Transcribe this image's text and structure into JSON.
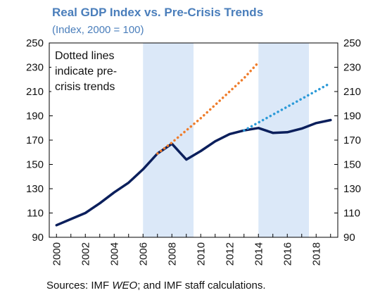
{
  "title": "Real GDP Index vs. Pre-Crisis Trends",
  "subtitle": "(Index, 2000 = 100)",
  "source": {
    "prefix": "Sources: IMF ",
    "italic": "WEO",
    "suffix": "; and IMF staff calculations."
  },
  "chart_data": {
    "type": "line",
    "x": [
      2000,
      2001,
      2002,
      2003,
      2004,
      2005,
      2006,
      2007,
      2008,
      2009,
      2010,
      2011,
      2012,
      2013,
      2014,
      2015,
      2016,
      2017,
      2018,
      2019
    ],
    "xlim": [
      1999.5,
      2019.5
    ],
    "ylim": [
      90,
      250
    ],
    "yticks": [
      90,
      110,
      130,
      150,
      170,
      190,
      210,
      230,
      250
    ],
    "xticks": [
      2000,
      2002,
      2004,
      2006,
      2008,
      2010,
      2012,
      2014,
      2016,
      2018
    ],
    "series": [
      {
        "values": [
          100,
          105,
          110,
          118,
          127,
          135,
          146,
          159,
          167,
          154,
          161,
          169,
          175,
          178,
          180,
          176,
          176.5,
          179.5,
          184,
          186.5
        ],
        "color": "#0b1f5c",
        "style": "solid"
      },
      {
        "x": [
          2007,
          2008,
          2009,
          2010,
          2011,
          2012,
          2013,
          2014
        ],
        "values": [
          159,
          168,
          178,
          188,
          199,
          210,
          221,
          234
        ],
        "color": "#ef7d2c",
        "style": "dotted"
      },
      {
        "x": [
          2013,
          2014,
          2015,
          2016,
          2017,
          2018,
          2019
        ],
        "values": [
          178,
          184.5,
          191,
          197.5,
          204,
          210.5,
          217
        ],
        "color": "#2b9ad8",
        "style": "dotted"
      }
    ],
    "shaded_regions": [
      {
        "from": 2006,
        "to": 2009.5,
        "color": "#dbe8f8"
      },
      {
        "from": 2014,
        "to": 2017.5,
        "color": "#dbe8f8"
      }
    ],
    "annotation": [
      "Dotted lines",
      "indicate pre-",
      "crisis trends"
    ],
    "grid": false
  }
}
